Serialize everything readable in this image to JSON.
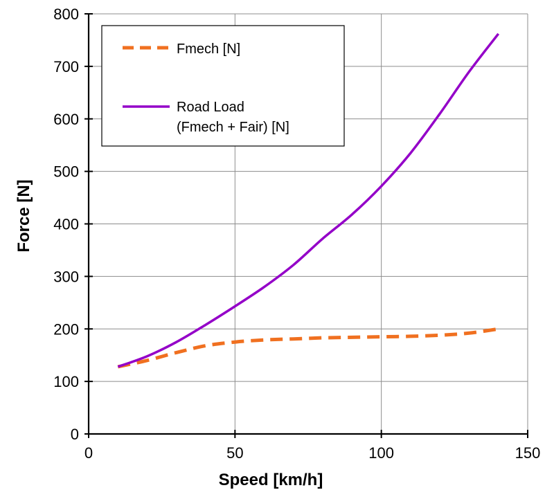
{
  "chart_data": {
    "type": "line",
    "xlabel": "Speed [km/h]",
    "ylabel": "Force [N]",
    "xlim": [
      0,
      150
    ],
    "ylim": [
      0,
      800
    ],
    "xticks": [
      0,
      50,
      100,
      150
    ],
    "yticks": [
      0,
      100,
      200,
      300,
      400,
      500,
      600,
      700,
      800
    ],
    "xtick_labels": [
      "0",
      "50",
      "100",
      "150"
    ],
    "ytick_labels": [
      "0",
      "100",
      "200",
      "300",
      "400",
      "500",
      "600",
      "700",
      "800"
    ],
    "grid": true,
    "legend_position": "top-left",
    "series": [
      {
        "name": "Fmech [N]",
        "color": "#F07020",
        "dash": "dashed",
        "x": [
          10,
          20,
          30,
          40,
          50,
          60,
          70,
          80,
          90,
          100,
          110,
          120,
          130,
          140
        ],
        "y": [
          128,
          140,
          155,
          168,
          175,
          179,
          181,
          183,
          184,
          185,
          186,
          188,
          192,
          200
        ]
      },
      {
        "name_lines": [
          "Road Load",
          "(Fmech + Fair) [N]"
        ],
        "color": "#9400C8",
        "dash": "solid",
        "x": [
          10,
          20,
          30,
          40,
          50,
          60,
          70,
          80,
          90,
          100,
          110,
          120,
          130,
          140
        ],
        "y": [
          128,
          148,
          175,
          208,
          243,
          280,
          322,
          372,
          418,
          472,
          535,
          610,
          690,
          762
        ]
      }
    ]
  }
}
